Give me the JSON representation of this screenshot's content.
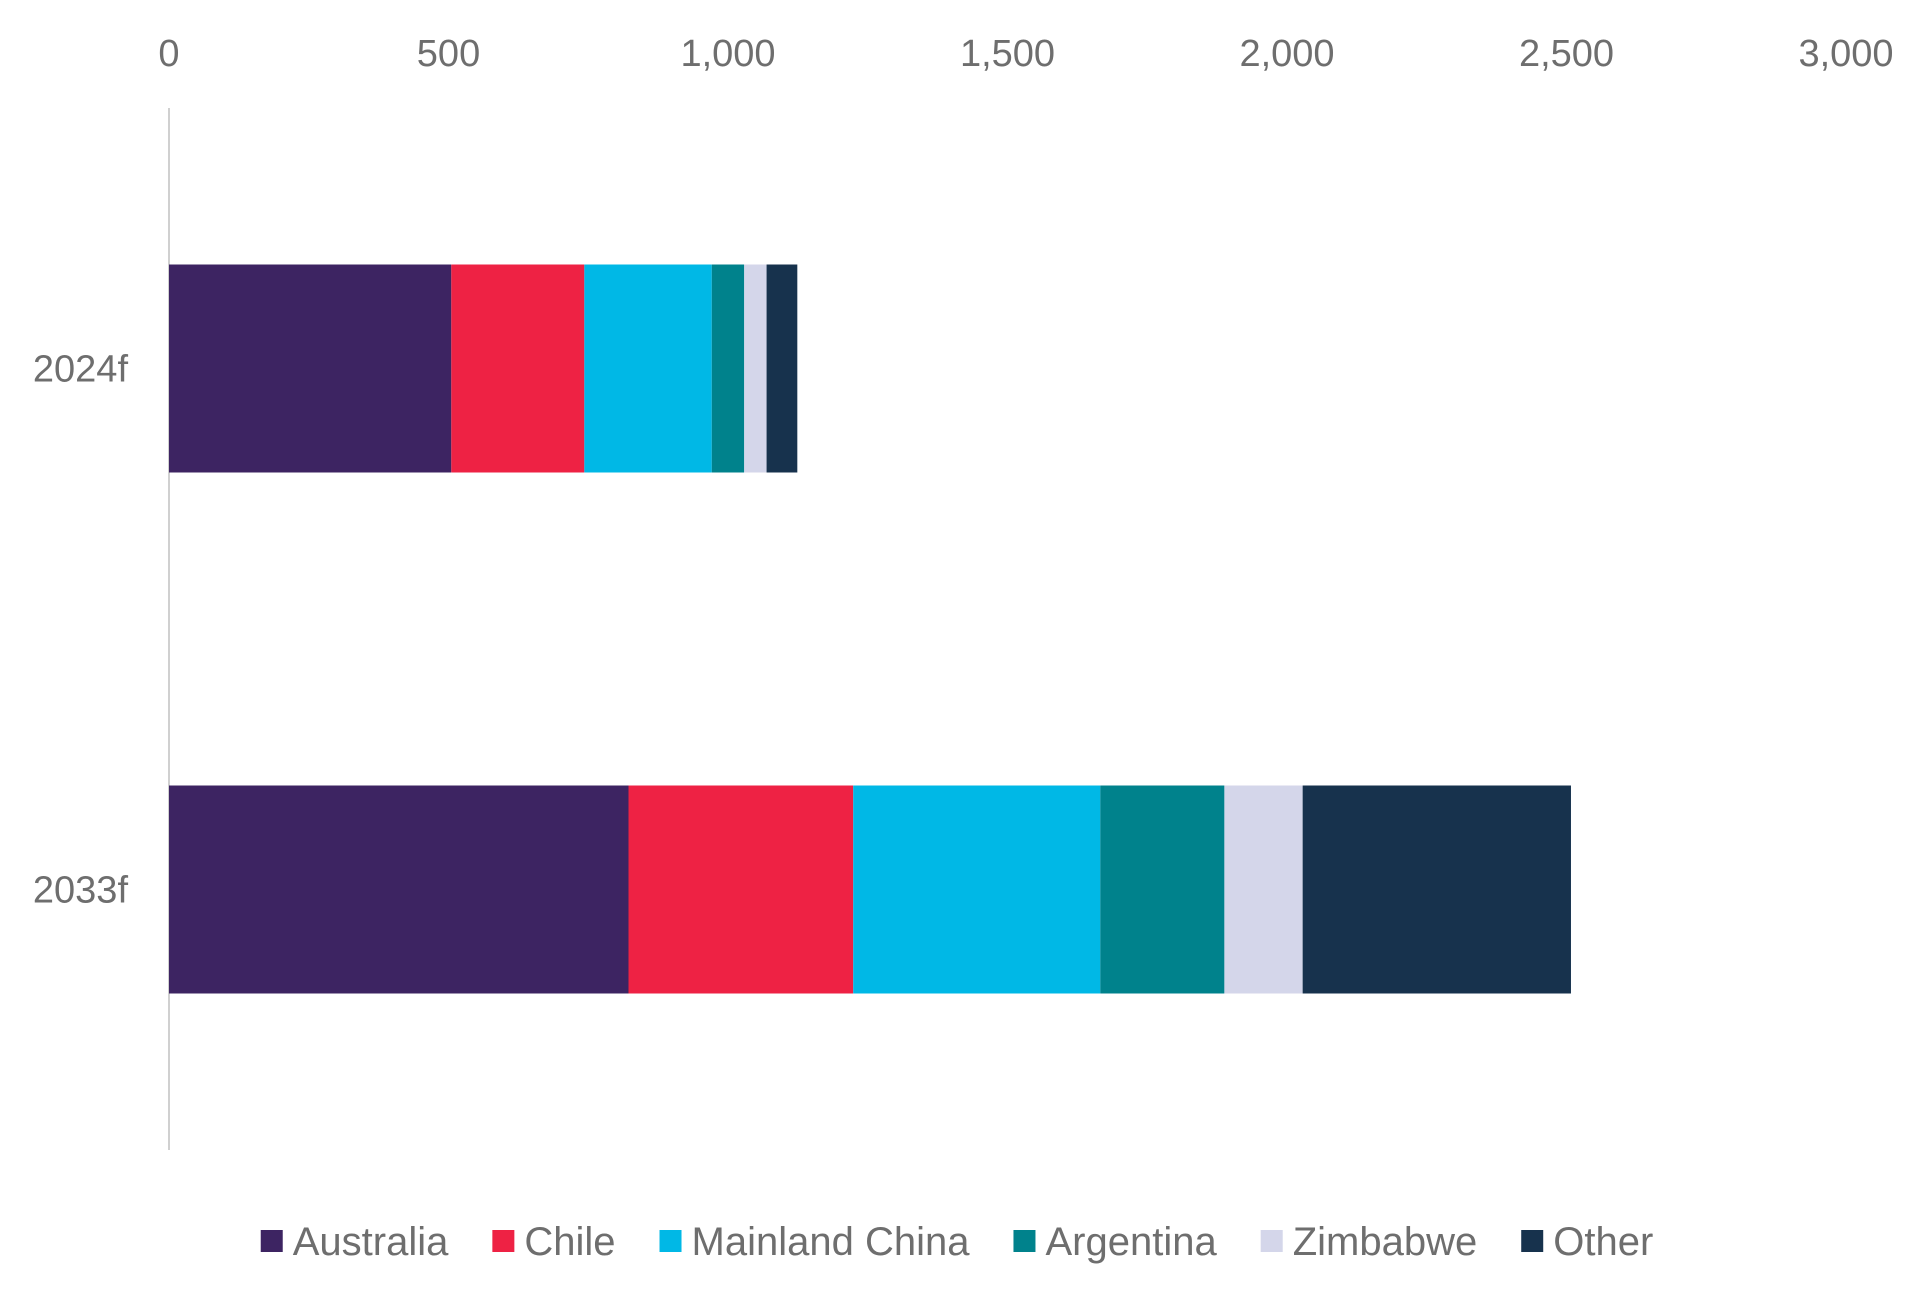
{
  "chart_data": {
    "type": "bar",
    "orientation": "horizontal",
    "stacked": true,
    "title": "",
    "xlabel": "",
    "ylabel": "",
    "xlim": [
      0,
      3000
    ],
    "x_ticks": [
      0,
      500,
      1000,
      1500,
      2000,
      2500,
      3000
    ],
    "x_tick_labels": [
      "0",
      "500",
      "1,000",
      "1,500",
      "2,000",
      "2,500",
      "3,000"
    ],
    "x_axis_position": "top",
    "grid": false,
    "legend_position": "bottom",
    "categories": [
      "2024f",
      "2033f"
    ],
    "series": [
      {
        "name": "Australia",
        "color": "#3d2462",
        "values": [
          505,
          822
        ]
      },
      {
        "name": "Chile",
        "color": "#ee2244",
        "values": [
          238,
          402
        ]
      },
      {
        "name": "Mainland China",
        "color": "#00b8e6",
        "values": [
          228,
          442
        ]
      },
      {
        "name": "Argentina",
        "color": "#00828c",
        "values": [
          58,
          222
        ]
      },
      {
        "name": "Zimbabwe",
        "color": "#d4d6ea",
        "values": [
          40,
          140
        ]
      },
      {
        "name": "Other",
        "color": "#17324d",
        "values": [
          55,
          480
        ]
      }
    ]
  }
}
